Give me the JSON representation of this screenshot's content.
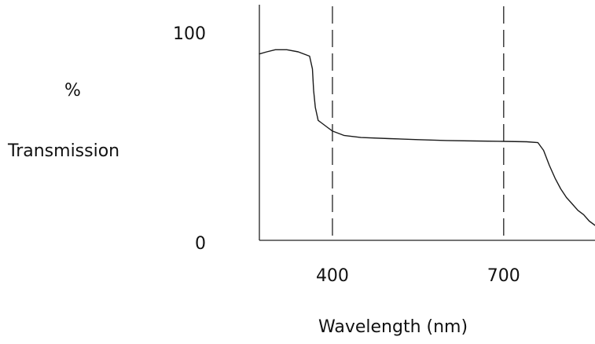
{
  "chart_data": {
    "type": "line",
    "xlabel": "Wavelength (nm)",
    "ylabel_lines": [
      "%",
      "Transmission"
    ],
    "xticks": [
      {
        "value": 400,
        "label": "400"
      },
      {
        "value": 700,
        "label": "700"
      }
    ],
    "yticks": [
      {
        "value": 0,
        "label": "0"
      },
      {
        "value": 100,
        "label": "100"
      }
    ],
    "xlim": [
      272,
      860
    ],
    "ylim": [
      0,
      110
    ],
    "grid": false,
    "reference_lines": [
      {
        "axis": "x",
        "value": 400,
        "style": "dashed"
      },
      {
        "axis": "x",
        "value": 700,
        "style": "dashed"
      }
    ],
    "series": [
      {
        "x": [
          272,
          285,
          300,
          320,
          340,
          360,
          365,
          367,
          370,
          375,
          380,
          390,
          400,
          420,
          450,
          500,
          550,
          600,
          650,
          700,
          740,
          760,
          770,
          780,
          790,
          800,
          810,
          820,
          830,
          840,
          850,
          860
        ],
        "values": [
          87,
          88,
          89,
          89,
          88,
          86,
          80,
          70,
          62,
          56,
          55,
          53,
          51,
          49,
          48,
          47.5,
          47,
          46.6,
          46.4,
          46.2,
          46,
          45.6,
          42,
          35,
          29,
          24,
          20,
          17,
          14,
          12,
          9,
          7
        ]
      }
    ]
  }
}
